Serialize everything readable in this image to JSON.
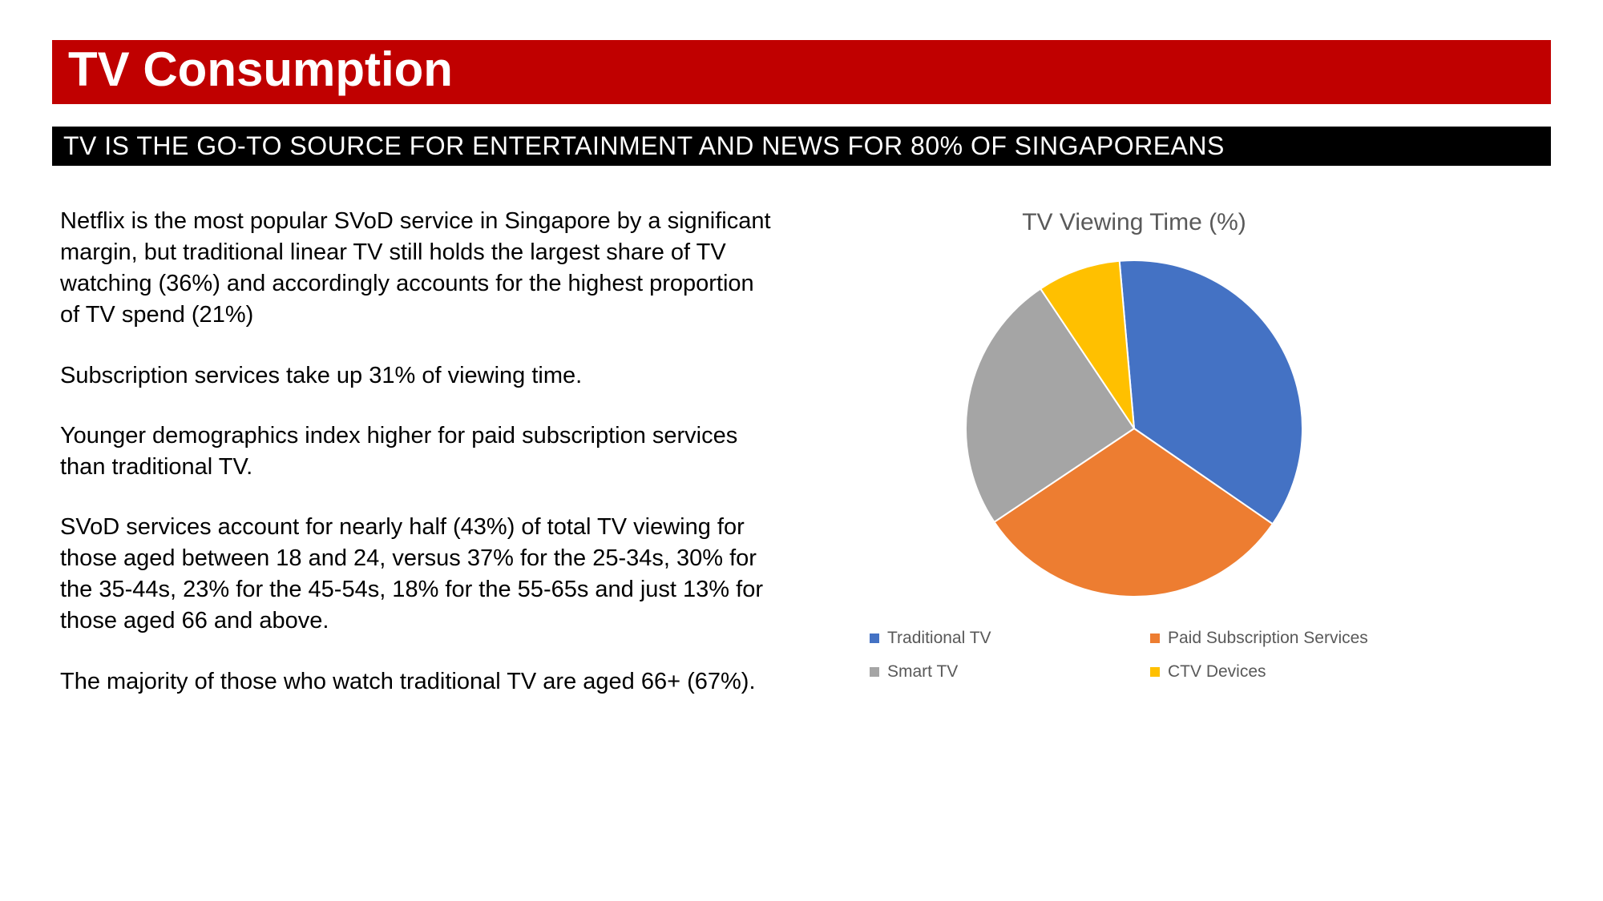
{
  "header": {
    "title": "TV Consumption",
    "subtitle": "TV IS THE GO-TO SOURCE FOR ENTERTAINMENT AND NEWS FOR 80% OF SINGAPOREANS",
    "title_bg": "#c00000",
    "title_color": "#ffffff",
    "subtitle_bg": "#000000",
    "subtitle_color": "#ffffff"
  },
  "body": {
    "paragraphs": {
      "p0": "Netflix is the most popular SVoD service in Singapore by a significant margin, but traditional linear TV still holds the largest share of TV watching (36%) and accordingly accounts for the highest proportion of TV spend (21%)",
      "p1": "Subscription services take up 31% of viewing time.",
      "p2": "Younger demographics index higher for paid subscription services than traditional TV.",
      "p3": "SVoD services account for nearly half (43%) of total TV viewing for those aged between 18 and 24, versus 37% for the 25-34s, 30% for the 35-44s, 23% for the 45-54s, 18% for the 55-65s and just 13% for those aged 66 and above.",
      "p4": "The majority of those who watch traditional TV are aged 66+ (67%)."
    },
    "font_size": 29,
    "text_color": "#000000"
  },
  "chart": {
    "type": "pie",
    "title": "TV Viewing Time (%)",
    "title_fontsize": 30,
    "title_color": "#595959",
    "radius": 210,
    "start_angle": -5,
    "background_color": "#ffffff",
    "stroke_color": "#ffffff",
    "stroke_width": 2,
    "slices": [
      {
        "label": "Traditional TV",
        "value": 36,
        "color": "#4472c4"
      },
      {
        "label": "Paid Subscription Services",
        "value": 31,
        "color": "#ed7d31"
      },
      {
        "label": "Smart TV",
        "value": 25,
        "color": "#a5a5a5"
      },
      {
        "label": "CTV Devices",
        "value": 8,
        "color": "#ffc000"
      }
    ],
    "legend_font_size": 21,
    "legend_color": "#595959"
  }
}
